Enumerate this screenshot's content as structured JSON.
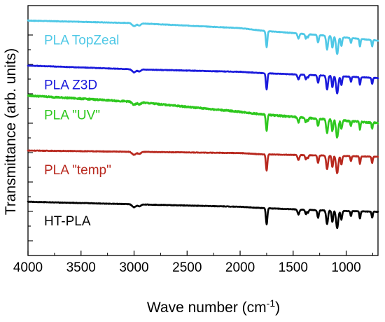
{
  "chart_data": {
    "type": "line",
    "title": "",
    "xlabel": "Wave number (cm",
    "xlabel_sup": "-1",
    "xlabel_suffix": ")",
    "ylabel": "Transmittance (arb. units)",
    "xlim": [
      4000,
      700
    ],
    "x_reversed": true,
    "x_ticks": [
      4000,
      3500,
      3000,
      2500,
      2000,
      1500,
      1000
    ],
    "y_tick_labels_visible": false,
    "grid": false,
    "legend": "inline-labels",
    "series": [
      {
        "name": "PLA TopZeal",
        "color": "#4fc8e6",
        "baseline": [
          [
            4000,
            0.94
          ],
          [
            3000,
            0.93
          ],
          [
            2000,
            0.91
          ],
          [
            1800,
            0.9
          ],
          [
            1200,
            0.88
          ],
          [
            700,
            0.86
          ]
        ],
        "peaks": [
          [
            3000,
            0.012,
            25
          ],
          [
            2950,
            0.008,
            20
          ],
          [
            1750,
            0.065,
            10
          ],
          [
            1450,
            0.02,
            12
          ],
          [
            1380,
            0.018,
            10
          ],
          [
            1360,
            0.012,
            8
          ],
          [
            1265,
            0.03,
            10
          ],
          [
            1180,
            0.055,
            12
          ],
          [
            1130,
            0.045,
            10
          ],
          [
            1085,
            0.07,
            14
          ],
          [
            1045,
            0.035,
            10
          ],
          [
            955,
            0.02,
            8
          ],
          [
            870,
            0.03,
            8
          ],
          [
            755,
            0.025,
            8
          ]
        ]
      },
      {
        "name": "PLA Z3D",
        "color": "#1a1adc",
        "baseline": [
          [
            4000,
            0.76
          ],
          [
            3000,
            0.745
          ],
          [
            2000,
            0.735
          ],
          [
            1800,
            0.73
          ],
          [
            1200,
            0.72
          ],
          [
            700,
            0.71
          ]
        ],
        "peaks": [
          [
            3000,
            0.012,
            25
          ],
          [
            2950,
            0.008,
            20
          ],
          [
            1750,
            0.065,
            10
          ],
          [
            1450,
            0.02,
            12
          ],
          [
            1380,
            0.018,
            10
          ],
          [
            1360,
            0.012,
            8
          ],
          [
            1265,
            0.03,
            10
          ],
          [
            1180,
            0.055,
            12
          ],
          [
            1130,
            0.045,
            10
          ],
          [
            1085,
            0.07,
            14
          ],
          [
            1045,
            0.035,
            10
          ],
          [
            955,
            0.02,
            8
          ],
          [
            870,
            0.03,
            8
          ],
          [
            755,
            0.025,
            8
          ]
        ]
      },
      {
        "name": "PLA \"UV\"",
        "color": "#2ec81e",
        "baseline": [
          [
            4000,
            0.64
          ],
          [
            3000,
            0.615
          ],
          [
            2000,
            0.575
          ],
          [
            1800,
            0.565
          ],
          [
            1200,
            0.545
          ],
          [
            700,
            0.53
          ]
        ],
        "peaks": [
          [
            3000,
            0.012,
            25
          ],
          [
            2950,
            0.008,
            20
          ],
          [
            1750,
            0.065,
            10
          ],
          [
            1450,
            0.02,
            12
          ],
          [
            1380,
            0.018,
            10
          ],
          [
            1360,
            0.012,
            8
          ],
          [
            1265,
            0.03,
            10
          ],
          [
            1180,
            0.055,
            12
          ],
          [
            1130,
            0.045,
            10
          ],
          [
            1085,
            0.07,
            14
          ],
          [
            1045,
            0.035,
            10
          ],
          [
            955,
            0.02,
            8
          ],
          [
            870,
            0.03,
            8
          ],
          [
            755,
            0.025,
            8
          ]
        ]
      },
      {
        "name": "PLA \"temp\"",
        "color": "#b8281e",
        "baseline": [
          [
            4000,
            0.42
          ],
          [
            3000,
            0.415
          ],
          [
            2000,
            0.41
          ],
          [
            1800,
            0.405
          ],
          [
            1200,
            0.4
          ],
          [
            700,
            0.395
          ]
        ],
        "peaks": [
          [
            3000,
            0.012,
            25
          ],
          [
            2950,
            0.008,
            20
          ],
          [
            1750,
            0.065,
            10
          ],
          [
            1450,
            0.02,
            12
          ],
          [
            1380,
            0.018,
            10
          ],
          [
            1360,
            0.012,
            8
          ],
          [
            1265,
            0.03,
            10
          ],
          [
            1180,
            0.055,
            12
          ],
          [
            1130,
            0.045,
            10
          ],
          [
            1085,
            0.07,
            14
          ],
          [
            1045,
            0.035,
            10
          ],
          [
            955,
            0.02,
            8
          ],
          [
            870,
            0.03,
            8
          ],
          [
            755,
            0.025,
            8
          ]
        ]
      },
      {
        "name": "HT-PLA",
        "color": "#000000",
        "baseline": [
          [
            4000,
            0.215
          ],
          [
            3000,
            0.205
          ],
          [
            2000,
            0.195
          ],
          [
            1800,
            0.19
          ],
          [
            1200,
            0.18
          ],
          [
            700,
            0.175
          ]
        ],
        "peaks": [
          [
            3000,
            0.012,
            25
          ],
          [
            2950,
            0.008,
            20
          ],
          [
            1750,
            0.065,
            10
          ],
          [
            1450,
            0.02,
            12
          ],
          [
            1380,
            0.018,
            10
          ],
          [
            1360,
            0.012,
            8
          ],
          [
            1265,
            0.03,
            10
          ],
          [
            1180,
            0.055,
            12
          ],
          [
            1130,
            0.045,
            10
          ],
          [
            1085,
            0.07,
            14
          ],
          [
            1045,
            0.035,
            10
          ],
          [
            955,
            0.02,
            8
          ],
          [
            870,
            0.03,
            8
          ],
          [
            755,
            0.025,
            8
          ]
        ]
      }
    ]
  }
}
